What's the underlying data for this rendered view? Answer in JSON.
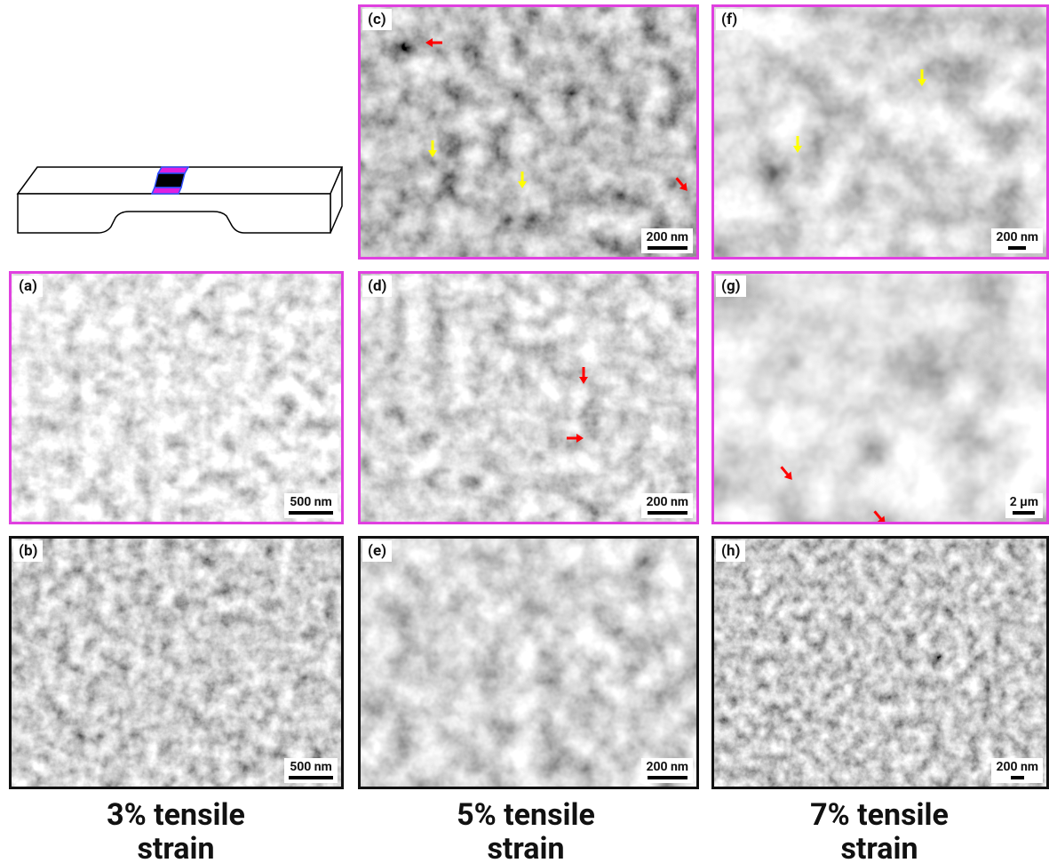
{
  "panels": [
    {
      "label": "(a)",
      "scale_bar": "500 nm"
    },
    {
      "label": "(b)",
      "scale_bar": "500 nm"
    },
    {
      "label": "(c)",
      "scale_bar": "200 nm"
    },
    {
      "label": "(d)",
      "scale_bar": "200 nm"
    },
    {
      "label": "(e)",
      "scale_bar": "200 nm"
    },
    {
      "label": "(f)",
      "scale_bar": "200 nm"
    },
    {
      "label": "(g)",
      "scale_bar": "2 μm"
    },
    {
      "label": "(h)",
      "scale_bar": "200 nm"
    }
  ],
  "captions": [
    {
      "line1": "3% tensile",
      "line2": "strain"
    },
    {
      "line1": "5% tensile",
      "line2": "strain"
    },
    {
      "line1": "7% tensile",
      "line2": "strain"
    }
  ]
}
